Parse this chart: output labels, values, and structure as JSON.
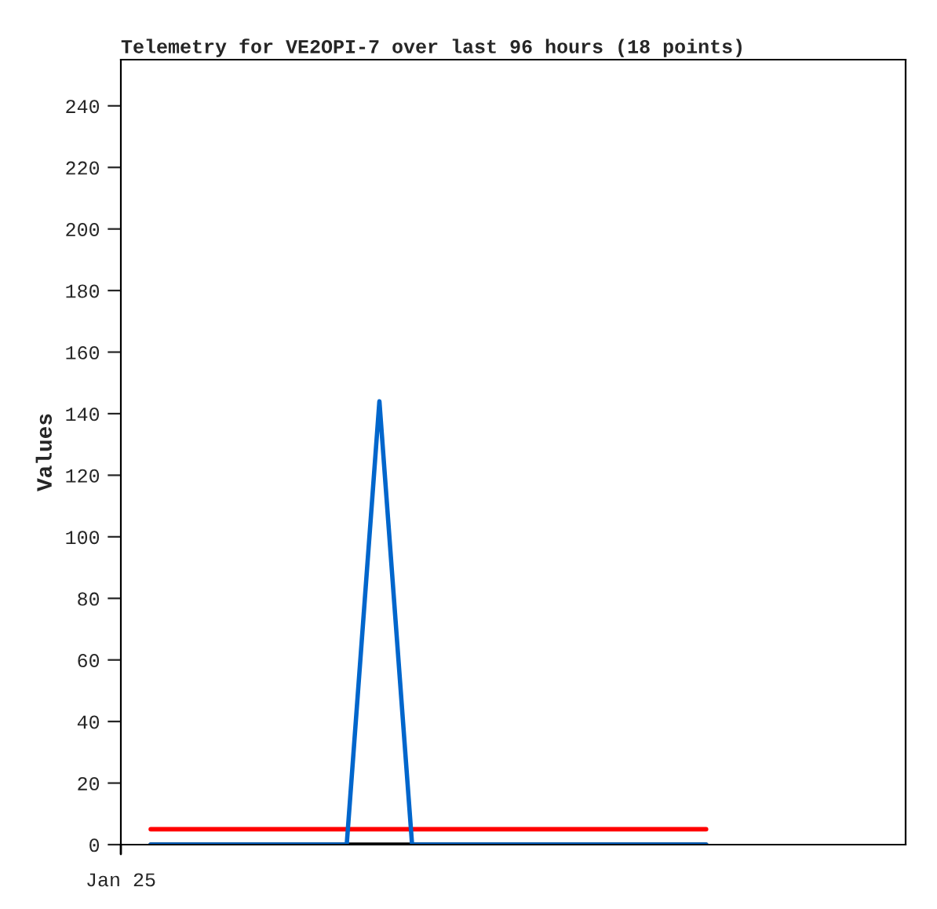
{
  "chart_data": {
    "type": "line",
    "title": "Telemetry for VE2OPI-7 over last 96 hours (18 points)",
    "ylabel": "Values",
    "categories": [
      null,
      null,
      null,
      null,
      null,
      null,
      null,
      null,
      null,
      null,
      null,
      null,
      null,
      null,
      null,
      null,
      null,
      null
    ],
    "annotations": [
      "Jan 25"
    ],
    "ylim": [
      0,
      255
    ],
    "yticks": [
      0,
      20,
      40,
      60,
      80,
      100,
      120,
      140,
      160,
      180,
      200,
      220,
      240
    ],
    "series": [
      {
        "color": "#000000",
        "values": [
          0,
          0,
          0,
          0,
          0,
          0,
          0,
          0,
          0,
          0,
          0,
          0,
          0,
          0,
          0,
          0,
          0,
          0
        ]
      },
      {
        "color": "#ff0000",
        "values": [
          5,
          5,
          5,
          5,
          5,
          5,
          5,
          5,
          5,
          5,
          5,
          5,
          5,
          5,
          5,
          5,
          5,
          5
        ]
      },
      {
        "color": "#0066cc",
        "values": [
          0,
          0,
          0,
          0,
          0,
          0,
          0,
          144,
          0,
          0,
          0,
          0,
          0,
          0,
          0,
          0,
          0,
          0
        ]
      }
    ],
    "grid": false,
    "marker": "none",
    "line_style": "solid"
  }
}
